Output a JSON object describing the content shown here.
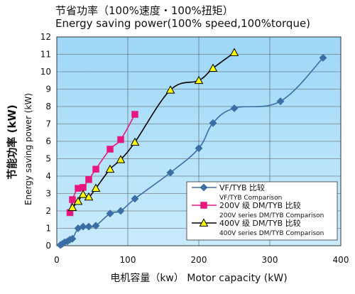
{
  "chart_data": {
    "type": "line",
    "title": "节省功率（100%速度・100%扭矩）",
    "subtitle": "Energy saving power(100% speed,100%torque)",
    "xlabel": "电机容量（kw） Motor capacity (kW)",
    "ylabel": "节能功率 (kW)",
    "ylabel_en": "Energy saving power (kW)",
    "xlim": [
      0,
      400
    ],
    "ylim": [
      0,
      12
    ],
    "xticks": [
      0,
      100,
      200,
      300,
      400
    ],
    "yticks": [
      0,
      1,
      2,
      3,
      4,
      5,
      6,
      7,
      8,
      9,
      10,
      11,
      12
    ],
    "grid": true,
    "legend_position": "bottom-right",
    "series": [
      {
        "name": "VF/TYB 比较",
        "name_en": "VF/TYB Comparison",
        "color": "#3a6ea5",
        "marker": "diamond",
        "x": [
          5,
          7.5,
          11,
          15,
          18.5,
          22,
          30,
          37,
          45,
          55,
          75,
          90,
          110,
          160,
          200,
          220,
          250,
          315,
          375
        ],
        "y": [
          0.04,
          0.1,
          0.2,
          0.25,
          0.35,
          0.4,
          1.0,
          1.1,
          1.1,
          1.15,
          1.85,
          2.0,
          2.7,
          4.2,
          5.6,
          7.05,
          7.9,
          8.3,
          10.8
        ]
      },
      {
        "name": "200V 级 DM/TYB 比较",
        "name_en": "200V series DM/TYB Comparison",
        "color": "#e8177e",
        "marker": "square",
        "x": [
          18.5,
          22,
          30,
          37,
          45,
          55,
          75,
          90,
          110
        ],
        "y": [
          1.9,
          2.65,
          3.3,
          3.35,
          3.8,
          4.4,
          5.55,
          6.1,
          7.55
        ]
      },
      {
        "name": "400V 级 DM/TYB 比较",
        "name_en": "400V series DM/TYB Comparison",
        "color": "#000000",
        "marker": "triangle",
        "x": [
          22,
          30,
          37,
          45,
          55,
          75,
          90,
          110,
          160,
          200,
          220,
          250
        ],
        "y": [
          2.2,
          2.55,
          2.95,
          2.8,
          3.3,
          4.4,
          4.95,
          5.95,
          8.95,
          9.5,
          10.2,
          11.1
        ]
      }
    ]
  }
}
